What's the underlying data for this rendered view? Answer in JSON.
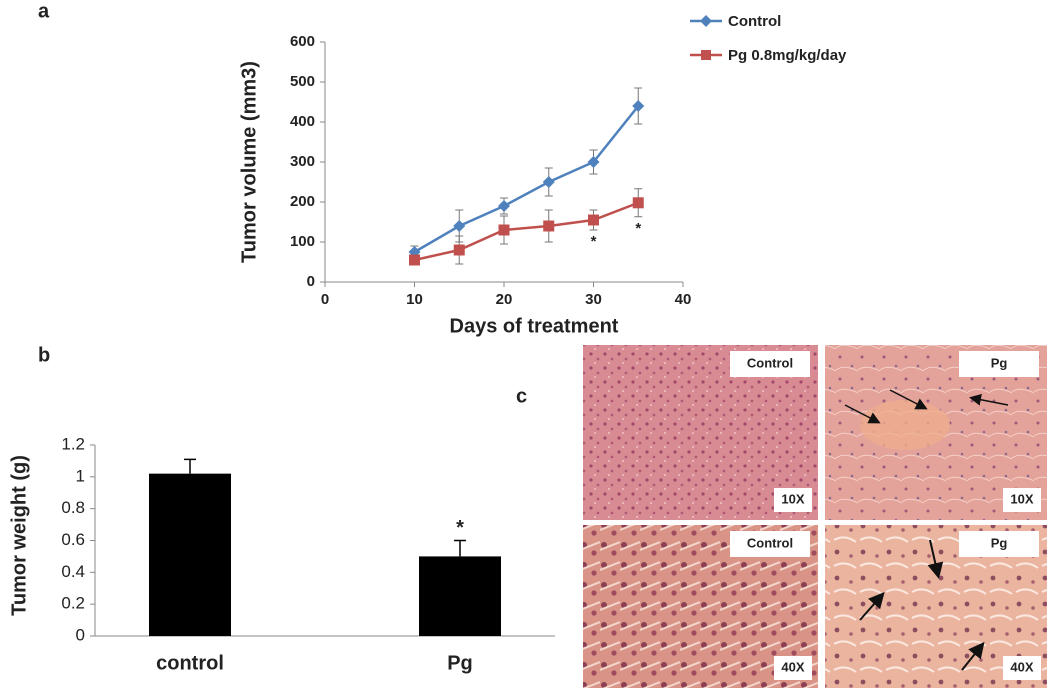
{
  "chart_data": [
    {
      "type": "line",
      "panel": "a",
      "x_label": "Days of treatment",
      "y_label": "Tumor volume (mm3)",
      "x": [
        10,
        15,
        20,
        25,
        30,
        35
      ],
      "series": [
        {
          "name": "Control",
          "color": "#4f81bd",
          "marker": "diamond",
          "values": [
            75,
            140,
            190,
            250,
            300,
            440
          ],
          "errors": [
            15,
            40,
            20,
            35,
            30,
            45
          ]
        },
        {
          "name": "Pg 0.8mg/kg/day",
          "color": "#c0504d",
          "marker": "square",
          "values": [
            55,
            80,
            130,
            140,
            155,
            198
          ],
          "errors": [
            10,
            35,
            35,
            40,
            25,
            35
          ]
        }
      ],
      "significance": [
        null,
        null,
        null,
        null,
        "*",
        "*"
      ],
      "xlim": [
        0,
        40
      ],
      "xticks": [
        0,
        10,
        20,
        30,
        40
      ],
      "ylim": [
        0,
        600
      ],
      "yticks": [
        0,
        100,
        200,
        300,
        400,
        500,
        600
      ],
      "grid": false,
      "legend": "top-right"
    },
    {
      "type": "bar",
      "panel": "b",
      "y_label": "Tumor weight (g)",
      "categories": [
        "control",
        "Pg"
      ],
      "values": [
        1.02,
        0.5
      ],
      "errors": [
        0.09,
        0.1
      ],
      "color": "#000000",
      "significance": [
        null,
        "*"
      ],
      "ylim": [
        0,
        1.2
      ],
      "yticks": [
        0,
        0.2,
        0.4,
        0.6,
        0.8,
        1,
        1.2
      ],
      "grid": false
    }
  ],
  "panel_c": {
    "label": "c",
    "images": [
      {
        "label": "Control",
        "magnification": "10X"
      },
      {
        "label": "Pg",
        "magnification": "10X"
      },
      {
        "label": "Control",
        "magnification": "40X"
      },
      {
        "label": "Pg",
        "magnification": "40X"
      }
    ]
  }
}
